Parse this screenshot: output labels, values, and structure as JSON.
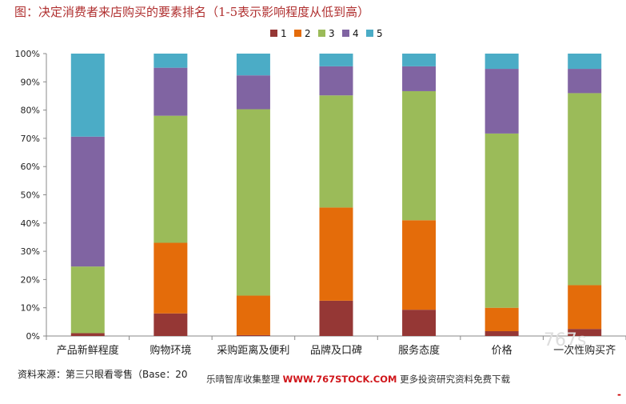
{
  "title": "图：决定消费者来店购买的要素排名（1-5表示影响程度从低到高）",
  "source": "资料来源：第三只眼看零售（Base：20",
  "watermark": {
    "prefix": "乐晴智库收集整理",
    "url": "WWW.767STOCK.COM",
    "suffix": "更多投资研究资料免费下载",
    "corner": "767s"
  },
  "chart_data": {
    "type": "bar",
    "stacked": true,
    "percent": true,
    "title": "图：决定消费者来店购买的要素排名（1-5表示影响程度从低到高）",
    "xlabel": "",
    "ylabel": "",
    "ylim": [
      0,
      100
    ],
    "yticks": [
      "0%",
      "10%",
      "20%",
      "30%",
      "40%",
      "50%",
      "60%",
      "70%",
      "80%",
      "90%",
      "100%"
    ],
    "legend_position": "top-center",
    "categories": [
      "产品新鲜程度",
      "购物环境",
      "采购距离及便利",
      "品牌及口碑",
      "服务态度",
      "价格",
      "一次性购买齐"
    ],
    "series": [
      {
        "name": "1",
        "color": "#953735",
        "values": [
          1,
          8,
          0.3,
          12.5,
          9.3,
          1.7,
          2.5
        ]
      },
      {
        "name": "2",
        "color": "#e46c0a",
        "values": [
          0,
          25,
          14,
          33,
          31.7,
          8.3,
          15.5
        ]
      },
      {
        "name": "3",
        "color": "#9bbb59",
        "values": [
          23.6,
          45,
          66,
          39.7,
          45.7,
          61.7,
          68
        ]
      },
      {
        "name": "4",
        "color": "#8064a2",
        "values": [
          46,
          17,
          12,
          10.3,
          8.8,
          22.9,
          8.6
        ]
      },
      {
        "name": "5",
        "color": "#4bacc6",
        "values": [
          29.4,
          5,
          7.7,
          4.5,
          4.5,
          5.4,
          5.4
        ]
      }
    ]
  }
}
